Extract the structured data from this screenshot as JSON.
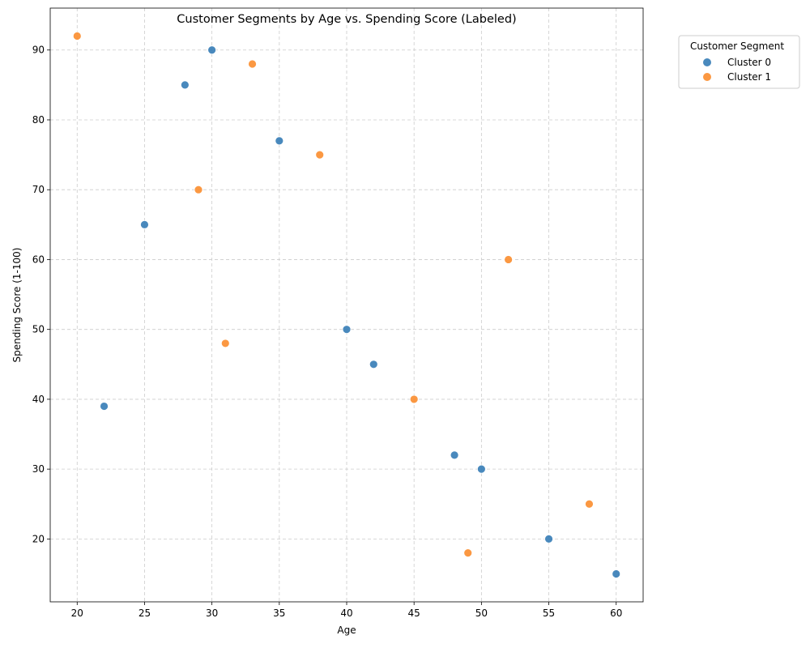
{
  "chart_data": {
    "type": "scatter",
    "title": "Customer Segments by Age vs. Spending Score (Labeled)",
    "xlabel": "Age",
    "ylabel": "Spending Score (1-100)",
    "xlim": [
      18,
      62
    ],
    "ylim": [
      11,
      96
    ],
    "xticks": [
      20,
      25,
      30,
      35,
      40,
      45,
      50,
      55,
      60
    ],
    "yticks": [
      20,
      30,
      40,
      50,
      60,
      70,
      80,
      90
    ],
    "grid": true,
    "legend": {
      "title": "Customer Segment",
      "placement": "outside-upper-right"
    },
    "series": [
      {
        "name": "Cluster 0",
        "color": "#3a7fb7",
        "points": [
          {
            "x": 22,
            "y": 39
          },
          {
            "x": 25,
            "y": 65
          },
          {
            "x": 28,
            "y": 85
          },
          {
            "x": 30,
            "y": 90
          },
          {
            "x": 35,
            "y": 77
          },
          {
            "x": 40,
            "y": 50
          },
          {
            "x": 42,
            "y": 45
          },
          {
            "x": 48,
            "y": 32
          },
          {
            "x": 50,
            "y": 30
          },
          {
            "x": 55,
            "y": 20
          },
          {
            "x": 60,
            "y": 15
          }
        ]
      },
      {
        "name": "Cluster 1",
        "color": "#fb8f32",
        "points": [
          {
            "x": 20,
            "y": 92
          },
          {
            "x": 29,
            "y": 70
          },
          {
            "x": 31,
            "y": 48
          },
          {
            "x": 33,
            "y": 88
          },
          {
            "x": 38,
            "y": 75
          },
          {
            "x": 45,
            "y": 40
          },
          {
            "x": 49,
            "y": 18
          },
          {
            "x": 52,
            "y": 60
          },
          {
            "x": 58,
            "y": 25
          }
        ]
      }
    ]
  }
}
